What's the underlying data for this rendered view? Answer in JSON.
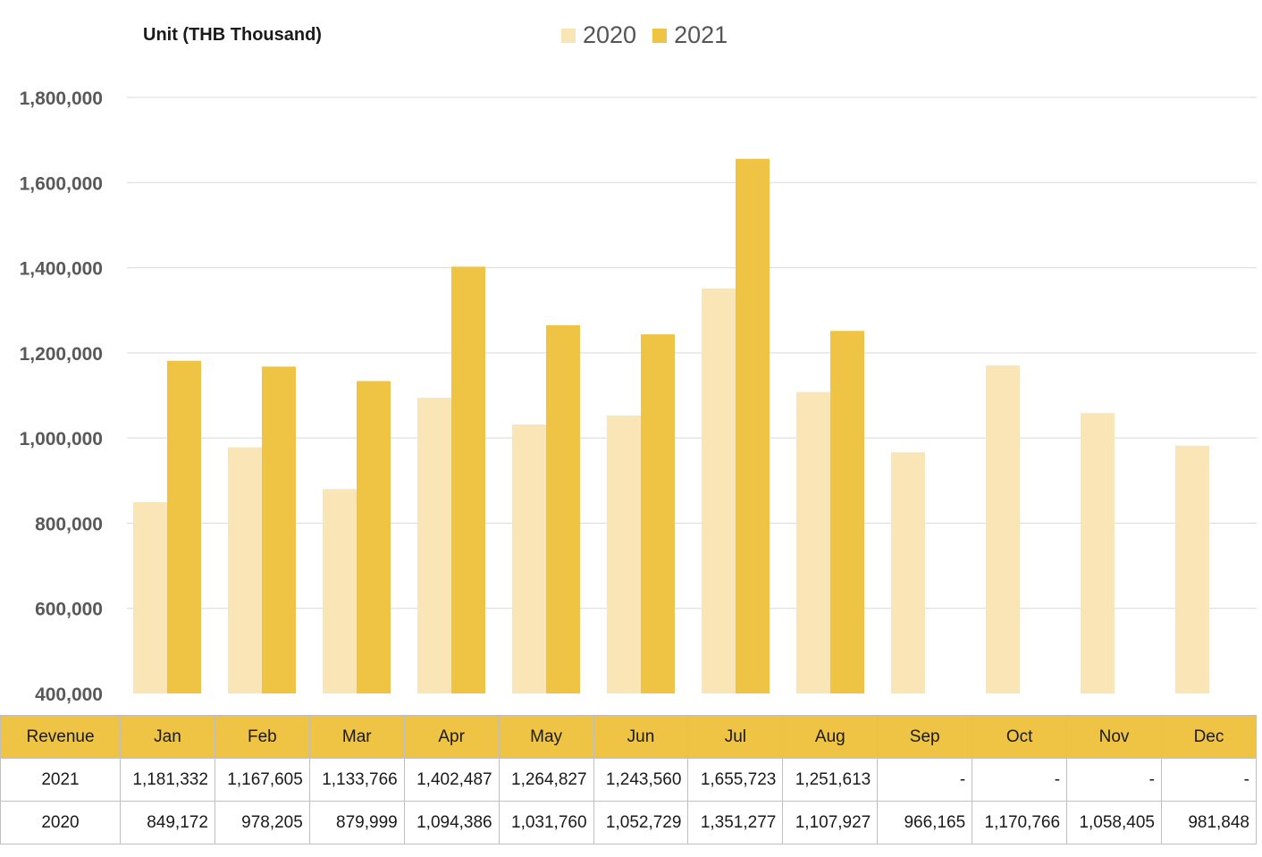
{
  "colors": {
    "y2020": "#f9e5b5",
    "y2021": "#efc343",
    "grid": "#d9d9d9",
    "table_header": "#efc343"
  },
  "chart_data": {
    "type": "bar",
    "unit_label": "Unit (THB  Thousand)",
    "categories": [
      "Jan",
      "Feb",
      "Mar",
      "Apr",
      "May",
      "Jun",
      "Jul",
      "Aug",
      "Sep",
      "Oct",
      "Nov",
      "Dec"
    ],
    "series": [
      {
        "name": "2020",
        "values": [
          849172,
          978205,
          879999,
          1094386,
          1031760,
          1052729,
          1351277,
          1107927,
          966165,
          1170766,
          1058405,
          981848
        ]
      },
      {
        "name": "2021",
        "values": [
          1181332,
          1167605,
          1133766,
          1402487,
          1264827,
          1243560,
          1655723,
          1251613,
          null,
          null,
          null,
          null
        ]
      }
    ],
    "ylim": [
      400000,
      1800000
    ],
    "yticks": [
      "400,000",
      "600,000",
      "800,000",
      "1,000,000",
      "1,200,000",
      "1,400,000",
      "1,600,000",
      "1,800,000"
    ],
    "grid": true,
    "legend": "top-center"
  },
  "table": {
    "header_label": "Revenue",
    "rows": [
      {
        "label": "2021",
        "cells": [
          "1,181,332",
          "1,167,605",
          "1,133,766",
          "1,402,487",
          "1,264,827",
          "1,243,560",
          "1,655,723",
          "1,251,613",
          "-",
          "-",
          "-",
          "-"
        ]
      },
      {
        "label": "2020",
        "cells": [
          "849,172",
          "978,205",
          "879,999",
          "1,094,386",
          "1,031,760",
          "1,052,729",
          "1,351,277",
          "1,107,927",
          "966,165",
          "1,170,766",
          "1,058,405",
          "981,848"
        ]
      }
    ]
  }
}
